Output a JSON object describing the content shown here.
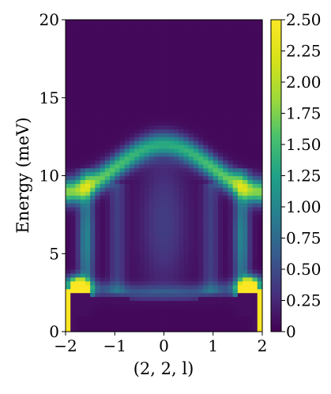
{
  "chart_data": {
    "type": "heatmap",
    "title": "",
    "xlabel": "(2, 2, l)",
    "ylabel": "Energy (meV)",
    "xlim": [
      -2,
      2
    ],
    "ylim": [
      0,
      20
    ],
    "x_ticks": [
      "−2",
      "−1",
      "0",
      "1",
      "2"
    ],
    "x_tick_values": [
      -2,
      -1,
      0,
      1,
      2
    ],
    "y_ticks": [
      "0",
      "5",
      "10",
      "15",
      "20"
    ],
    "y_tick_values": [
      0,
      5,
      10,
      15,
      20
    ],
    "colorbar": {
      "colormap": "viridis",
      "range": [
        0,
        2.5
      ],
      "ticks": [
        "0",
        "0.25",
        "0.50",
        "0.75",
        "1.00",
        "1.25",
        "1.50",
        "1.75",
        "2.00",
        "2.25",
        "2.50"
      ],
      "tick_values": [
        0,
        0.25,
        0.5,
        0.75,
        1.0,
        1.25,
        1.5,
        1.75,
        2.0,
        2.25,
        2.5
      ]
    },
    "grid": {
      "nx": 40,
      "ny": 80
    },
    "features": {
      "upper_band": {
        "energy_at_zone_boundary": 9.0,
        "energy_at_zone_center": 12.0,
        "intensity_peak": 1.75,
        "width_meV": 0.55
      },
      "lower_branch": {
        "gap_energy_at_center": 2.5,
        "intensity_peak_near_boundary": 2.5
      },
      "background_level": 0.05
    }
  }
}
